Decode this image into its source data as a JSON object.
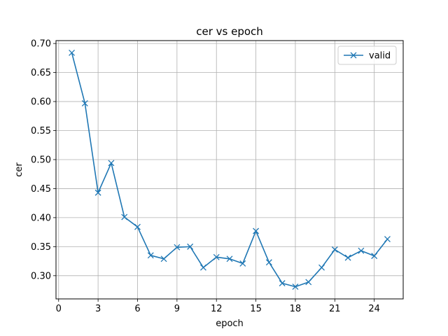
{
  "chart_data": {
    "type": "line",
    "title": "cer vs epoch",
    "xlabel": "epoch",
    "ylabel": "cer",
    "xlim": [
      -0.2,
      26.2
    ],
    "ylim": [
      0.26,
      0.705
    ],
    "xticks": [
      0,
      3,
      6,
      9,
      12,
      15,
      18,
      21,
      24
    ],
    "yticks": [
      0.3,
      0.35,
      0.4,
      0.45,
      0.5,
      0.55,
      0.6,
      0.65,
      0.7
    ],
    "ytick_labels": [
      "0.30",
      "0.35",
      "0.40",
      "0.45",
      "0.50",
      "0.55",
      "0.60",
      "0.65",
      "0.70"
    ],
    "grid": true,
    "legend_position": "top-right",
    "marker": "x",
    "colors": {
      "series": "#1f77b4",
      "grid": "#b0b0b0"
    },
    "series": [
      {
        "name": "valid",
        "x": [
          1,
          2,
          3,
          4,
          5,
          6,
          7,
          8,
          9,
          10,
          11,
          12,
          13,
          14,
          15,
          16,
          17,
          18,
          19,
          20,
          21,
          22,
          23,
          24,
          25
        ],
        "values": [
          0.684,
          0.597,
          0.443,
          0.494,
          0.401,
          0.384,
          0.335,
          0.329,
          0.349,
          0.35,
          0.314,
          0.332,
          0.329,
          0.321,
          0.377,
          0.323,
          0.287,
          0.281,
          0.289,
          0.314,
          0.345,
          0.331,
          0.343,
          0.334,
          0.363
        ]
      }
    ]
  }
}
